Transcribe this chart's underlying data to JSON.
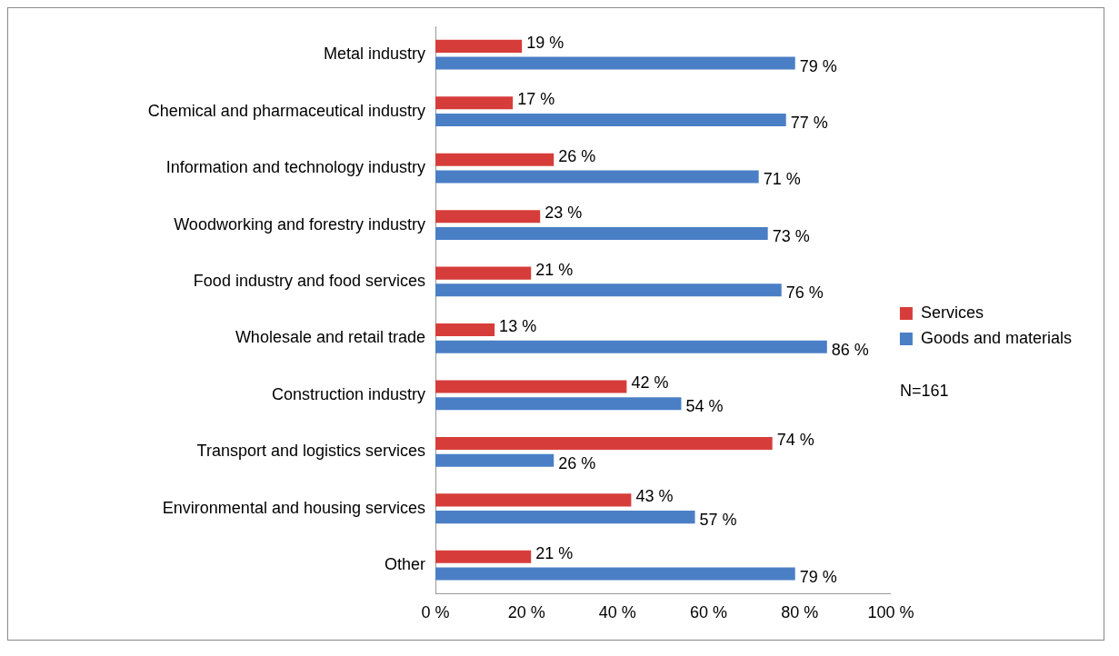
{
  "chart_data": {
    "type": "bar",
    "orientation": "horizontal",
    "categories": [
      "Metal industry",
      "Chemical and pharmaceutical industry",
      "Information and technology industry",
      "Woodworking and forestry industry",
      "Food industry and food services",
      "Wholesale and retail trade",
      "Construction industry",
      "Transport and logistics services",
      "Environmental and housing services",
      "Other"
    ],
    "series": [
      {
        "name": "Services",
        "color": "#d63d3a",
        "values": [
          19,
          17,
          26,
          23,
          21,
          13,
          42,
          74,
          43,
          21
        ],
        "value_labels": [
          "19 %",
          "17 %",
          "26 %",
          "23 %",
          "21 %",
          "13 %",
          "42 %",
          "74 %",
          "43 %",
          "21 %"
        ]
      },
      {
        "name": "Goods and materials",
        "color": "#4a7fc6",
        "values": [
          79,
          77,
          71,
          73,
          76,
          86,
          54,
          26,
          57,
          79
        ],
        "value_labels": [
          "79 %",
          "77 %",
          "71 %",
          "73 %",
          "76 %",
          "86 %",
          "54 %",
          "26 %",
          "57 %",
          "79 %"
        ]
      }
    ],
    "xlim": [
      0,
      100
    ],
    "xticks": [
      {
        "value": 0,
        "label": "0 %"
      },
      {
        "value": 20,
        "label": "20 %"
      },
      {
        "value": 40,
        "label": "40 %"
      },
      {
        "value": 60,
        "label": "60 %"
      },
      {
        "value": 80,
        "label": "80 %"
      },
      {
        "value": 100,
        "label": "100 %"
      }
    ],
    "grid": false,
    "legend": "right",
    "annotations": [
      "N=161"
    ]
  }
}
